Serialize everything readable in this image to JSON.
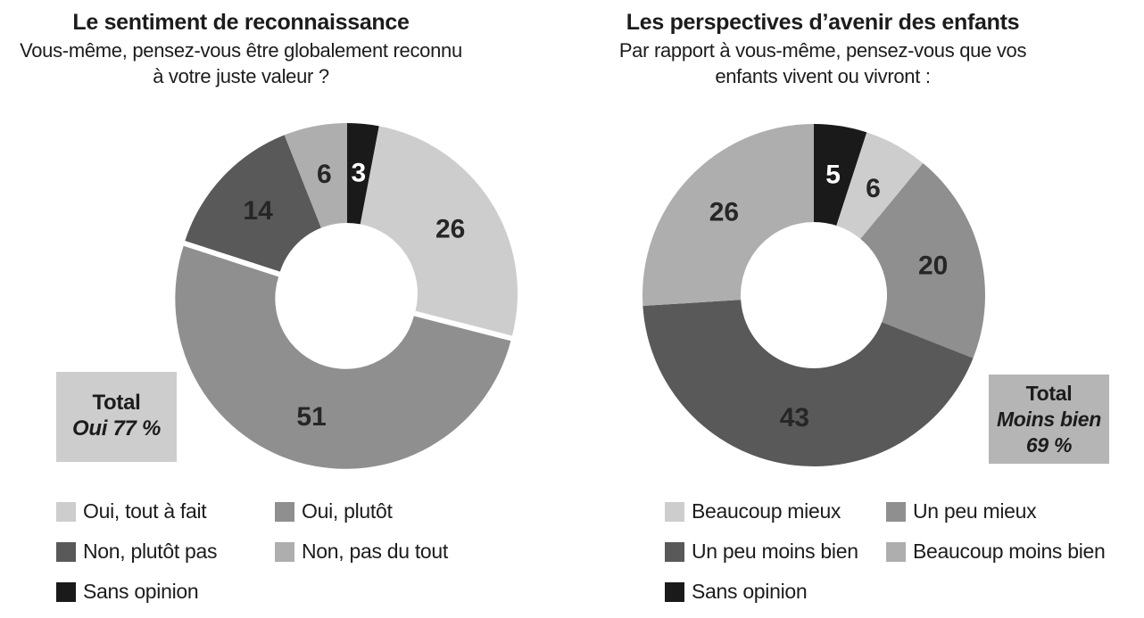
{
  "page": {
    "background": "#ffffff",
    "text_color": "#1c1c1c"
  },
  "charts": [
    {
      "title": "Le sentiment de reconnaissance",
      "subtitle": "Vous-même, pensez-vous être globalement reconnu\nà votre juste valeur ?",
      "chart_data": {
        "type": "pie",
        "donut": true,
        "unit": "%",
        "categories": [
          "Oui, tout à fait",
          "Oui, plutôt",
          "Non, plutôt pas",
          "Non, pas du tout",
          "Sans opinion"
        ],
        "values": [
          26,
          51,
          14,
          6,
          3
        ],
        "colors": [
          "#cdcdcd",
          "#8f8f8f",
          "#595959",
          "#aeaeae",
          "#1a1a1a"
        ],
        "value_label_colors": [
          "#262626",
          "#262626",
          "#262626",
          "#262626",
          "#ffffff"
        ],
        "clockwise_order_from_top": [
          4,
          0,
          1,
          2,
          3
        ],
        "start_angle_deg": 0,
        "exploded_category_index": 1,
        "legend_position": "bottom-two-columns"
      },
      "total_box": {
        "lines": [
          "Total",
          "Oui 77 %"
        ],
        "bg": "#cdcdcd"
      }
    },
    {
      "title": "Les perspectives d’avenir des enfants",
      "subtitle": "Par rapport à vous-même, pensez-vous que vos\nenfants vivent ou vivront :",
      "chart_data": {
        "type": "pie",
        "donut": true,
        "unit": "%",
        "categories": [
          "Beaucoup mieux",
          "Un peu mieux",
          "Un peu moins bien",
          "Beaucoup moins bien",
          "Sans opinion"
        ],
        "values": [
          6,
          20,
          43,
          26,
          5
        ],
        "colors": [
          "#cdcdcd",
          "#8f8f8f",
          "#595959",
          "#aeaeae",
          "#1a1a1a"
        ],
        "value_label_colors": [
          "#262626",
          "#262626",
          "#262626",
          "#262626",
          "#ffffff"
        ],
        "clockwise_order_from_top": [
          4,
          0,
          1,
          2,
          3
        ],
        "start_angle_deg": 0,
        "exploded_category_index": null,
        "legend_position": "bottom-two-columns"
      },
      "total_box": {
        "lines": [
          "Total",
          "Moins bien",
          "69 %"
        ],
        "bg": "#b5b5b5"
      }
    }
  ]
}
